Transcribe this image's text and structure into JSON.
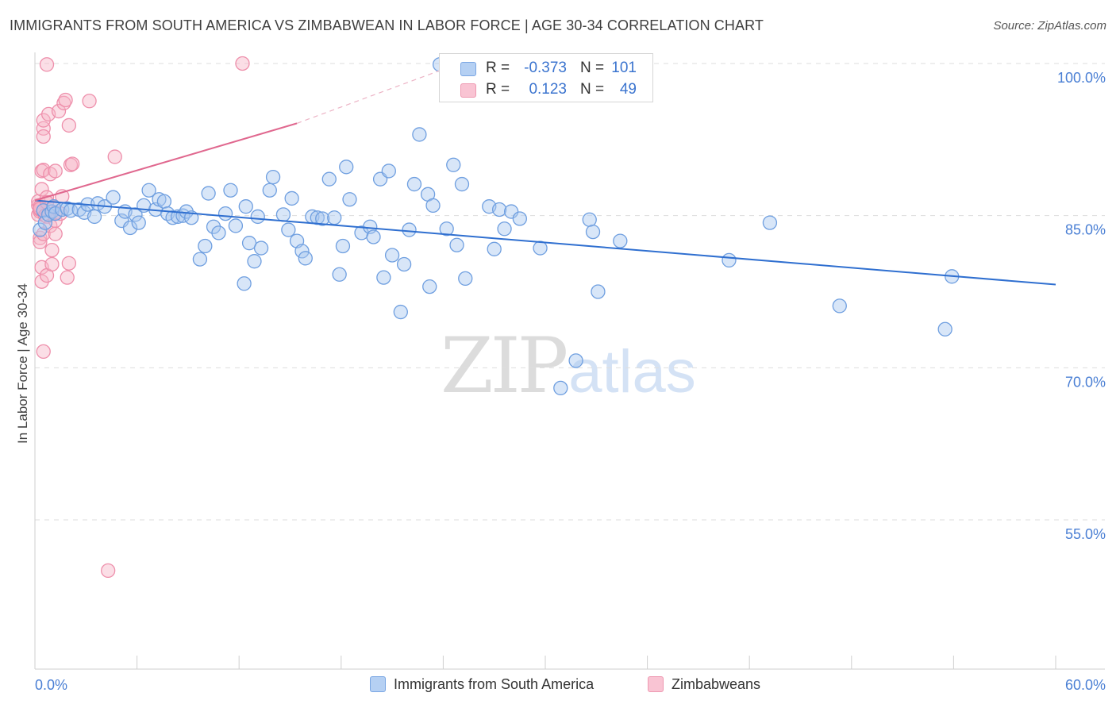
{
  "header": {
    "title": "IMMIGRANTS FROM SOUTH AMERICA VS ZIMBABWEAN IN LABOR FORCE | AGE 30-34 CORRELATION CHART",
    "source": "Source: ZipAtlas.com"
  },
  "legend": {
    "rows": [
      {
        "r_label": "R =",
        "r_value": "-0.373",
        "n_label": "N =",
        "n_value": "101"
      },
      {
        "r_label": "R =",
        "r_value": "0.123",
        "n_label": "N =",
        "n_value": "49"
      }
    ]
  },
  "bottom_legend": {
    "series1": "Immigrants from South America",
    "series2": "Zimbabweans"
  },
  "watermark": {
    "zip": "ZIP",
    "atlas": "atlas"
  },
  "colors": {
    "blue_fill": "#a9c8f0",
    "blue_stroke": "#6f9fe0",
    "blue_line": "#2f6fd0",
    "pink_fill": "#f6b6c8",
    "pink_stroke": "#ee8fab",
    "pink_line": "#e0688f",
    "axis_text": "#4a7fd4",
    "grid": "#dddddd"
  },
  "chart_data": {
    "type": "scatter",
    "title": "IMMIGRANTS FROM SOUTH AMERICA VS ZIMBABWEAN IN LABOR FORCE | AGE 30-34 CORRELATION CHART",
    "xlabel": "",
    "ylabel": "In Labor Force | Age 30-34",
    "xlim": [
      0,
      60
    ],
    "ylim": [
      40,
      102
    ],
    "x_tick_labels": [
      "0.0%",
      "60.0%"
    ],
    "y_ticks": [
      55,
      70,
      85,
      100
    ],
    "y_tick_labels": [
      "55.0%",
      "70.0%",
      "85.0%",
      "100.0%"
    ],
    "grid": true,
    "series": [
      {
        "name": "Immigrants from South America",
        "R": -0.373,
        "N": 101,
        "trend": {
          "x0": 0,
          "y0": 86.5,
          "x1": 60,
          "y1": 78.2
        },
        "points": [
          [
            0.3,
            83.6
          ],
          [
            0.5,
            85.5
          ],
          [
            0.6,
            84.3
          ],
          [
            0.8,
            85.1
          ],
          [
            1.0,
            85.4
          ],
          [
            1.1,
            85.9
          ],
          [
            1.2,
            85.2
          ],
          [
            1.6,
            85.6
          ],
          [
            1.9,
            85.7
          ],
          [
            2.1,
            85.5
          ],
          [
            2.6,
            85.6
          ],
          [
            2.9,
            85.3
          ],
          [
            3.1,
            86.1
          ],
          [
            3.5,
            84.9
          ],
          [
            3.7,
            86.2
          ],
          [
            4.1,
            85.9
          ],
          [
            4.6,
            86.8
          ],
          [
            5.1,
            84.5
          ],
          [
            5.3,
            85.4
          ],
          [
            5.6,
            83.8
          ],
          [
            5.9,
            85.1
          ],
          [
            6.1,
            84.3
          ],
          [
            6.4,
            86.0
          ],
          [
            6.7,
            87.5
          ],
          [
            7.1,
            85.6
          ],
          [
            7.3,
            86.6
          ],
          [
            7.6,
            86.4
          ],
          [
            7.8,
            85.2
          ],
          [
            8.1,
            84.8
          ],
          [
            8.4,
            84.9
          ],
          [
            8.7,
            85.0
          ],
          [
            8.9,
            85.4
          ],
          [
            9.2,
            84.8
          ],
          [
            9.7,
            80.7
          ],
          [
            10.0,
            82.0
          ],
          [
            10.2,
            87.2
          ],
          [
            10.5,
            83.9
          ],
          [
            10.8,
            83.3
          ],
          [
            11.2,
            85.2
          ],
          [
            11.5,
            87.5
          ],
          [
            11.8,
            84.0
          ],
          [
            12.3,
            78.3
          ],
          [
            12.4,
            85.9
          ],
          [
            12.6,
            82.3
          ],
          [
            12.9,
            80.5
          ],
          [
            13.1,
            84.9
          ],
          [
            13.3,
            81.8
          ],
          [
            13.8,
            87.5
          ],
          [
            14.0,
            88.8
          ],
          [
            14.6,
            85.1
          ],
          [
            14.9,
            83.6
          ],
          [
            15.1,
            86.7
          ],
          [
            15.4,
            82.5
          ],
          [
            15.7,
            81.5
          ],
          [
            15.9,
            80.8
          ],
          [
            16.3,
            84.9
          ],
          [
            16.6,
            84.8
          ],
          [
            16.9,
            84.7
          ],
          [
            17.3,
            88.6
          ],
          [
            17.6,
            84.8
          ],
          [
            17.9,
            79.2
          ],
          [
            18.1,
            82.0
          ],
          [
            18.3,
            89.8
          ],
          [
            18.5,
            86.6
          ],
          [
            19.2,
            83.3
          ],
          [
            19.7,
            83.9
          ],
          [
            19.9,
            82.9
          ],
          [
            20.3,
            88.6
          ],
          [
            20.5,
            78.9
          ],
          [
            20.8,
            89.4
          ],
          [
            21.0,
            81.1
          ],
          [
            21.5,
            75.5
          ],
          [
            21.7,
            80.2
          ],
          [
            22.0,
            83.6
          ],
          [
            22.3,
            88.1
          ],
          [
            22.6,
            93.0
          ],
          [
            23.1,
            87.1
          ],
          [
            23.2,
            78.0
          ],
          [
            23.4,
            86.0
          ],
          [
            24.2,
            83.7
          ],
          [
            24.6,
            90.0
          ],
          [
            24.8,
            82.1
          ],
          [
            25.1,
            88.1
          ],
          [
            25.3,
            78.8
          ],
          [
            26.7,
            85.9
          ],
          [
            27.0,
            81.7
          ],
          [
            27.3,
            85.6
          ],
          [
            27.6,
            83.7
          ],
          [
            28.0,
            85.4
          ],
          [
            28.5,
            84.7
          ],
          [
            29.7,
            81.8
          ],
          [
            30.9,
            68.0
          ],
          [
            31.8,
            70.7
          ],
          [
            32.6,
            84.6
          ],
          [
            32.8,
            83.4
          ],
          [
            33.1,
            77.5
          ],
          [
            34.4,
            82.5
          ],
          [
            40.8,
            80.6
          ],
          [
            43.2,
            84.3
          ],
          [
            47.3,
            76.1
          ],
          [
            53.5,
            73.8
          ],
          [
            53.9,
            79.0
          ],
          [
            23.8,
            99.9
          ]
        ]
      },
      {
        "name": "Zimbabweans",
        "R": 0.123,
        "N": 49,
        "trend": {
          "x0": 0,
          "y0": 86.5,
          "x1": 15.4,
          "y1": 94.1
        },
        "trend_dashed_to": {
          "x": 24.6,
          "y": 99.8
        },
        "points": [
          [
            0.2,
            85.1
          ],
          [
            0.2,
            86.0
          ],
          [
            0.2,
            86.4
          ],
          [
            0.3,
            85.4
          ],
          [
            0.3,
            85.6
          ],
          [
            0.3,
            85.9
          ],
          [
            0.3,
            85.7
          ],
          [
            0.3,
            82.8
          ],
          [
            0.3,
            82.4
          ],
          [
            0.4,
            89.4
          ],
          [
            0.4,
            87.6
          ],
          [
            0.4,
            79.9
          ],
          [
            0.4,
            78.5
          ],
          [
            0.5,
            93.6
          ],
          [
            0.5,
            92.8
          ],
          [
            0.5,
            94.4
          ],
          [
            0.5,
            89.5
          ],
          [
            0.5,
            83.2
          ],
          [
            0.5,
            71.6
          ],
          [
            0.6,
            85.0
          ],
          [
            0.7,
            86.8
          ],
          [
            0.7,
            86.3
          ],
          [
            0.7,
            84.9
          ],
          [
            0.7,
            79.1
          ],
          [
            0.7,
            99.9
          ],
          [
            0.8,
            95.0
          ],
          [
            0.9,
            89.1
          ],
          [
            0.9,
            84.0
          ],
          [
            1.0,
            81.6
          ],
          [
            1.0,
            80.2
          ],
          [
            1.1,
            85.8
          ],
          [
            1.2,
            89.4
          ],
          [
            1.2,
            84.5
          ],
          [
            1.2,
            83.2
          ],
          [
            1.2,
            85.3
          ],
          [
            1.4,
            95.3
          ],
          [
            1.5,
            85.2
          ],
          [
            1.6,
            86.9
          ],
          [
            1.7,
            96.1
          ],
          [
            1.8,
            96.4
          ],
          [
            1.9,
            78.9
          ],
          [
            2.0,
            80.3
          ],
          [
            2.0,
            93.9
          ],
          [
            2.1,
            90.0
          ],
          [
            2.2,
            90.1
          ],
          [
            3.2,
            96.3
          ],
          [
            4.7,
            90.8
          ],
          [
            4.3,
            50.0
          ],
          [
            12.2,
            100.0
          ]
        ]
      }
    ]
  }
}
